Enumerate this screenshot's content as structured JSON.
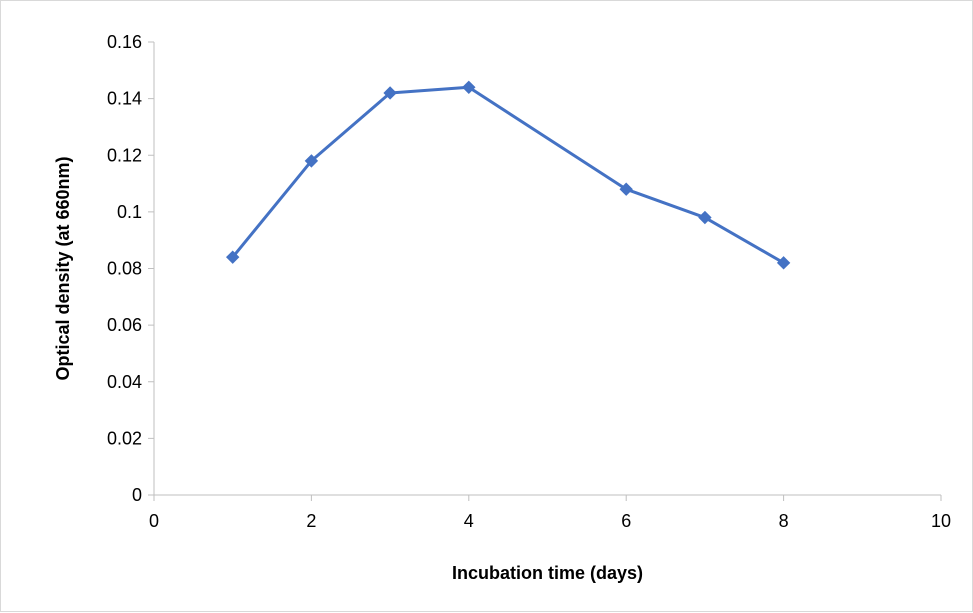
{
  "chart_data": {
    "type": "scatter",
    "title": "",
    "xlabel": "Incubation time (days)",
    "ylabel": "Optical density (at 660nm)",
    "xlim": [
      0,
      10
    ],
    "ylim": [
      0,
      0.16
    ],
    "x_ticks": [
      "0",
      "2",
      "4",
      "6",
      "8",
      "10"
    ],
    "y_ticks": [
      "0",
      "0.02",
      "0.04",
      "0.06",
      "0.08",
      "0.1",
      "0.12",
      "0.14",
      "0.16"
    ],
    "grid": false,
    "legend": "none",
    "series": [
      {
        "x": [
          1,
          2,
          3,
          4,
          6,
          7,
          8
        ],
        "y": [
          0.084,
          0.118,
          0.142,
          0.144,
          0.108,
          0.098,
          0.082
        ],
        "color": "#4472c4",
        "marker": "diamond",
        "line": "straight"
      }
    ]
  }
}
